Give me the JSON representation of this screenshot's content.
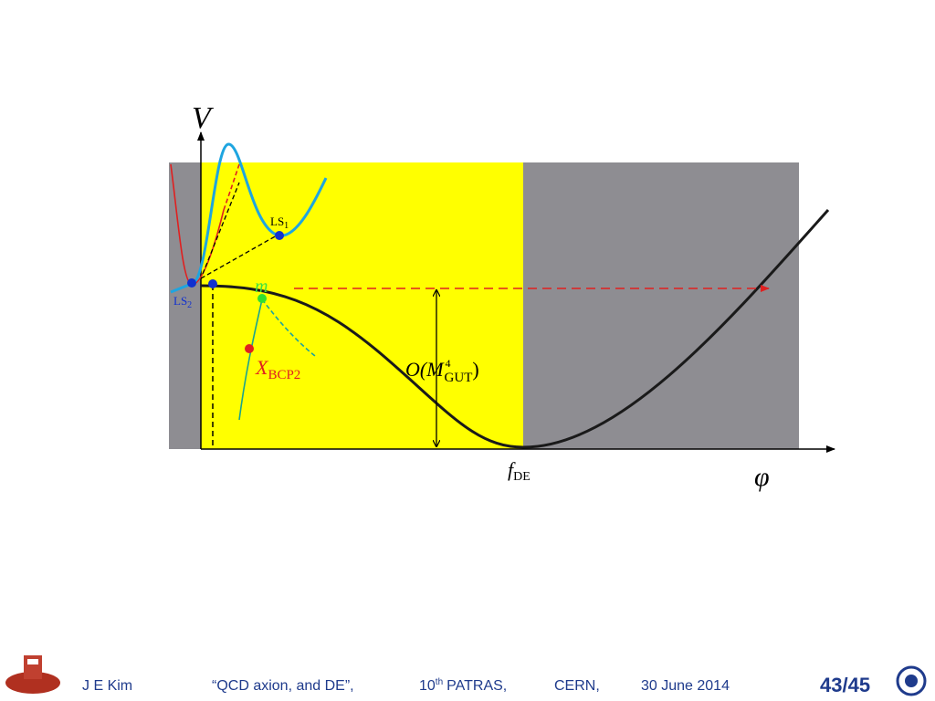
{
  "diagram": {
    "axis_v": "V",
    "axis_phi": "φ",
    "ls1": {
      "base": "LS",
      "sub": "1"
    },
    "ls2": {
      "base": "LS",
      "sub": "2"
    },
    "m": "m",
    "xbcp": {
      "base": "X",
      "sub": "BCP2"
    },
    "scale": {
      "pre": "O(M",
      "sup": "4",
      "sub": "GUT",
      "post": ")"
    },
    "fde": {
      "base": "f",
      "sub": "DE"
    }
  },
  "footer": {
    "author": "J  E  Kim",
    "talk": "“QCD axion,  and DE”,",
    "conf_num": "10",
    "conf_sup": "th",
    "conf_name": "PATRAS,",
    "place": "CERN,",
    "date": "30 June  2014",
    "page": "43/45"
  }
}
